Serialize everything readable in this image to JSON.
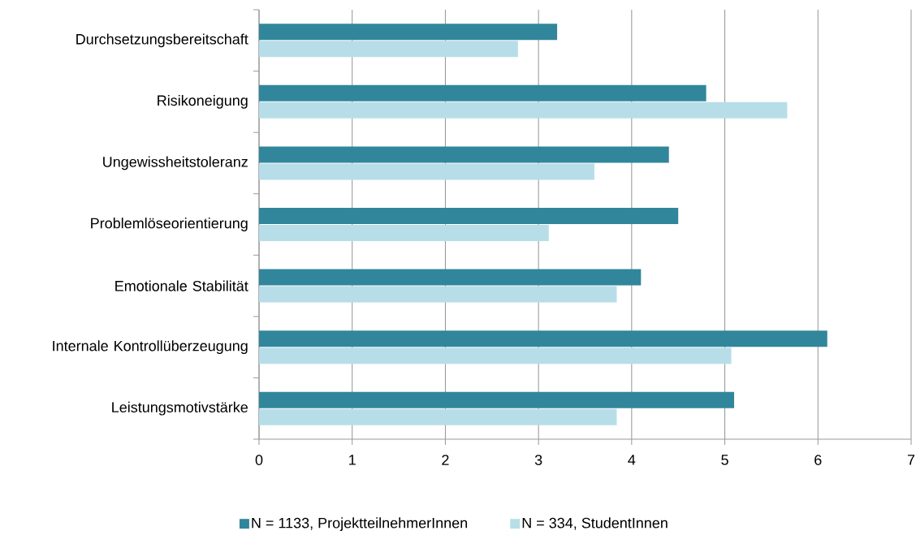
{
  "chart_data": {
    "type": "bar",
    "orientation": "horizontal",
    "categories": [
      "Durchsetzungsbereitschaft",
      "Risikoneigung",
      "Ungewissheitstoleranz",
      "Problemlöseorientierung",
      "Emotionale Stabilität",
      "Internale Kontrollüberzeugung",
      "Leistungsmotivstärke"
    ],
    "series": [
      {
        "name": "N = 1133, ProjektteilnehmerInnen",
        "color": "#31869b",
        "values": [
          3.2,
          4.8,
          4.4,
          4.5,
          4.1,
          6.1,
          5.1
        ]
      },
      {
        "name": "N = 334, StudentInnen",
        "color": "#b7dee8",
        "values": [
          2.78,
          5.67,
          3.6,
          3.11,
          3.84,
          5.07,
          3.84
        ]
      }
    ],
    "xlim": [
      0,
      7
    ],
    "xticks": [
      0,
      1,
      2,
      3,
      4,
      5,
      6,
      7
    ],
    "grid": "x",
    "legend": "bottom"
  }
}
